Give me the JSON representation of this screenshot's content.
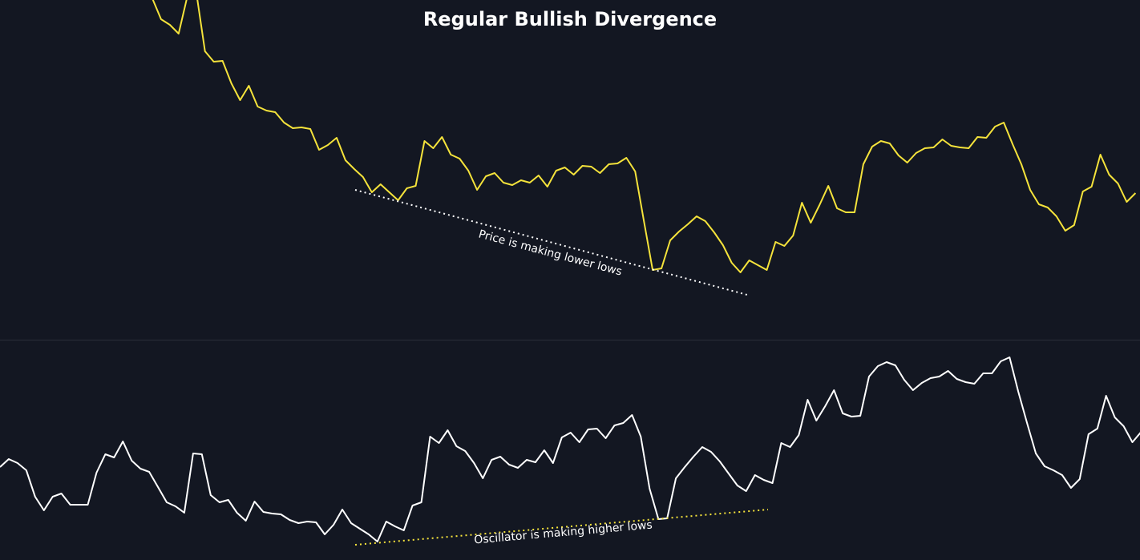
{
  "chart_data": {
    "type": "line",
    "title": "Regular Bullish Divergence",
    "xlabel": "",
    "ylabel": "",
    "grid": false,
    "axes_shown": false,
    "panes": [
      {
        "name": "price",
        "series": [
          {
            "color": "#f5e33b",
            "values": [
              452,
              426,
              419,
              408,
              455,
              460,
              386,
              373,
              374,
              346,
              325,
              343,
              317,
              312,
              310,
              297,
              290,
              291,
              289,
              263,
              269,
              278,
              250,
              239,
              229,
              210,
              220,
              210,
              200,
              215,
              218,
              274,
              265,
              279,
              257,
              252,
              237,
              213,
              230,
              234,
              222,
              219,
              225,
              222,
              231,
              217,
              237,
              241,
              232,
              243,
              242,
              234,
              245,
              246,
              253,
              236,
              174,
              113,
              115,
              150,
              161,
              170,
              180,
              174,
              160,
              144,
              122,
              110,
              125,
              119,
              113,
              148,
              143,
              156,
              197,
              172,
              194,
              218,
              190,
              185,
              185,
              245,
              267,
              274,
              271,
              256,
              247,
              259,
              265,
              266,
              276,
              268,
              266,
              265,
              279,
              278,
              292,
              297,
              270,
              245,
              213,
              195,
              191,
              180,
              162,
              169,
              211,
              217,
              257,
              232,
              221,
              198,
              209
            ]
          }
        ],
        "annotation": {
          "text": "Price is making lower lows",
          "line_color": "#ffffff",
          "line_style": "dotted"
        }
      },
      {
        "name": "oscillator",
        "series": [
          {
            "color": "#ffffff",
            "values": [
              117,
              127,
              122,
              113,
              80,
              63,
              80,
              84,
              70,
              70,
              70,
              110,
              133,
              129,
              149,
              125,
              115,
              111,
              92,
              73,
              68,
              60,
              134,
              133,
              82,
              73,
              76,
              60,
              50,
              74,
              61,
              59,
              58,
              51,
              47,
              49,
              48,
              33,
              45,
              64,
              47,
              40,
              33,
              24,
              49,
              43,
              38,
              69,
              73,
              155,
              147,
              163,
              143,
              137,
              122,
              103,
              126,
              130,
              120,
              116,
              126,
              123,
              138,
              122,
              154,
              160,
              148,
              164,
              165,
              153,
              169,
              172,
              182,
              155,
              90,
              52,
              53,
              103,
              117,
              130,
              142,
              136,
              124,
              109,
              94,
              87,
              107,
              101,
              97,
              147,
              142,
              157,
              201,
              175,
              193,
              213,
              184,
              180,
              181,
              230,
              243,
              248,
              244,
              226,
              213,
              222,
              228,
              230,
              237,
              227,
              223,
              221,
              234,
              234,
              249,
              254,
              211,
              172,
              134,
              118,
              113,
              107,
              91,
              102,
              158,
              165,
              206,
              179,
              168,
              148,
              161
            ]
          }
        ],
        "annotation": {
          "text": "Oscillator is making higher lows",
          "line_color": "#f5e33b",
          "line_style": "dotted"
        }
      }
    ]
  },
  "colors": {
    "background": "#131722",
    "divider": "#2a2e39"
  }
}
